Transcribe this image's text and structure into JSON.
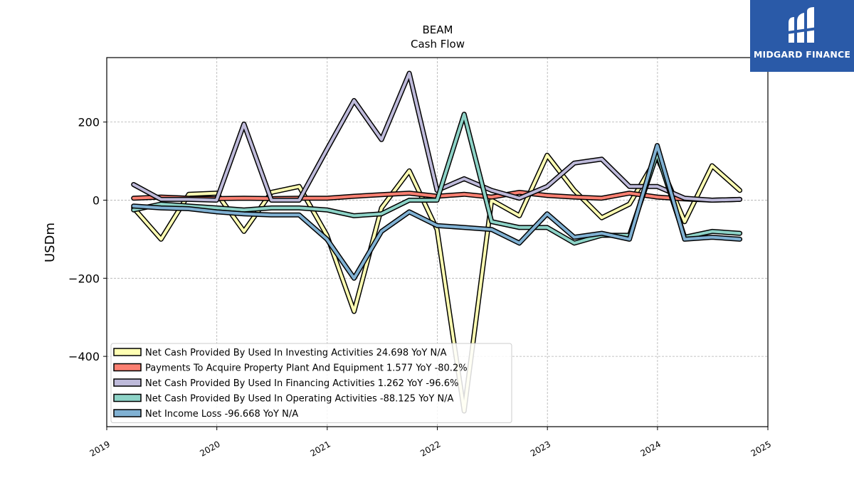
{
  "brand": {
    "name": "MIDGARD FINANCE",
    "bg_color": "#2a5aa8"
  },
  "chart_data": {
    "type": "line",
    "title": "BEAM",
    "subtitle": "Cash Flow",
    "ylabel": "USDm",
    "xlabel": "",
    "xlim": [
      "2019-01-01",
      "2025-01-01"
    ],
    "ylim": [
      -580,
      365
    ],
    "x_ticks": [
      "2019",
      "2020",
      "2021",
      "2022",
      "2023",
      "2024",
      "2025"
    ],
    "y_ticks": [
      200,
      0,
      -200,
      -400
    ],
    "y_tick_labels": [
      "200",
      "0",
      "−200",
      "−400"
    ],
    "grid": true,
    "legend_position": "lower-left",
    "x": [
      "2019-03-31",
      "2019-06-30",
      "2019-09-30",
      "2019-12-31",
      "2020-03-31",
      "2020-06-30",
      "2020-09-30",
      "2020-12-31",
      "2021-03-31",
      "2021-06-30",
      "2021-09-30",
      "2021-12-31",
      "2022-03-31",
      "2022-06-30",
      "2022-09-30",
      "2022-12-31",
      "2023-03-31",
      "2023-06-30",
      "2023-09-30",
      "2023-12-31",
      "2024-03-31",
      "2024-06-30",
      "2024-09-30"
    ],
    "series": [
      {
        "name": "Net Cash Provided By Used In Investing Activities",
        "legend": "Net Cash Provided By Used In Investing Activities  24.698 YoY N/A",
        "color": "#ffffb3",
        "values": [
          -20,
          -100,
          15,
          18,
          -80,
          20,
          35,
          -90,
          -285,
          -20,
          75,
          -75,
          -540,
          0,
          -40,
          115,
          25,
          -45,
          -10,
          110,
          -55,
          88,
          25
        ]
      },
      {
        "name": "Payments To Acquire Property Plant And Equipment",
        "legend": "Payments To Acquire Property Plant And Equipment  1.577 YoY -80.2%",
        "color": "#fb8072",
        "values": [
          5,
          8,
          5,
          4,
          5,
          4,
          5,
          5,
          10,
          14,
          18,
          10,
          15,
          8,
          20,
          12,
          8,
          5,
          18,
          8,
          3,
          0,
          2
        ]
      },
      {
        "name": "Net Cash Provided By Used In Financing Activities",
        "legend": "Net Cash Provided By Used In Financing Activities  1.262 YoY -96.6%",
        "color": "#bebada",
        "values": [
          40,
          2,
          2,
          0,
          195,
          0,
          0,
          130,
          255,
          155,
          325,
          25,
          55,
          25,
          5,
          35,
          95,
          105,
          35,
          35,
          5,
          0,
          2
        ]
      },
      {
        "name": "Net Cash Provided By Used In Operating Activities",
        "legend": "Net Cash Provided By Used In Operating Activities  -88.125 YoY N/A",
        "color": "#8dd3c7",
        "values": [
          -25,
          -10,
          -15,
          -20,
          -25,
          -20,
          -20,
          -25,
          -40,
          -35,
          0,
          0,
          220,
          -55,
          -70,
          -70,
          -110,
          -90,
          -90,
          120,
          -95,
          -80,
          -85
        ]
      },
      {
        "name": "Net Income Loss",
        "legend": "Net Income Loss  -96.668 YoY N/A",
        "color": "#80b1d3",
        "values": [
          -15,
          -20,
          -22,
          -30,
          -35,
          -38,
          -38,
          -100,
          -200,
          -80,
          -30,
          -65,
          -70,
          -75,
          -110,
          -35,
          -95,
          -85,
          -100,
          140,
          -100,
          -95,
          -100
        ]
      }
    ]
  }
}
